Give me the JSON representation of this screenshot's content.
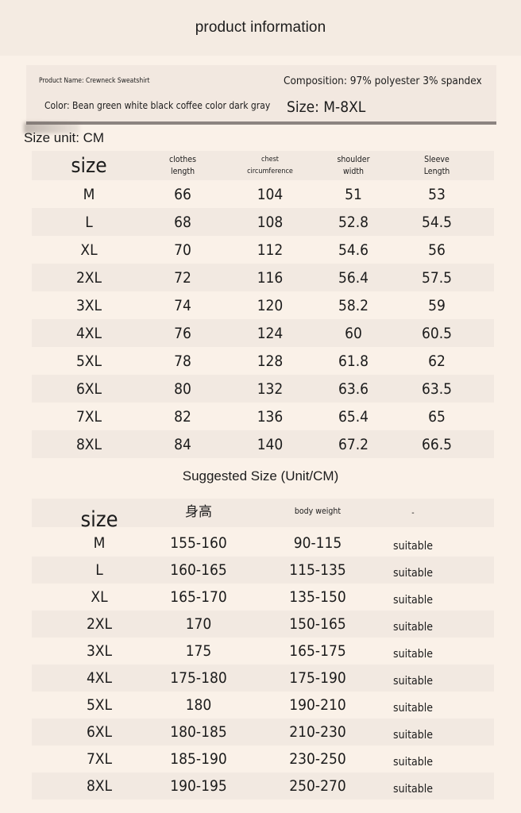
{
  "header": {
    "title": "product information"
  },
  "info": {
    "product_name": "Product Name: Crewneck Sweatshirt",
    "composition": "Composition: 97% polyester 3% spandex",
    "color": "Color: Bean green white black coffee color dark gray",
    "size_range": "Size: M-8XL"
  },
  "size_unit": "Size unit: CM",
  "measurements": {
    "headers": [
      "size",
      "clothes\nlength",
      "chest\ncircumference",
      "shoulder\nwidth",
      "Sleeve\nLength"
    ],
    "rows": [
      [
        "M",
        "66",
        "104",
        "51",
        "53"
      ],
      [
        "L",
        "68",
        "108",
        "52.8",
        "54.5"
      ],
      [
        "XL",
        "70",
        "112",
        "54.6",
        "56"
      ],
      [
        "2XL",
        "72",
        "116",
        "56.4",
        "57.5"
      ],
      [
        "3XL",
        "74",
        "120",
        "58.2",
        "59"
      ],
      [
        "4XL",
        "76",
        "124",
        "60",
        "60.5"
      ],
      [
        "5XL",
        "78",
        "128",
        "61.8",
        "62"
      ],
      [
        "6XL",
        "80",
        "132",
        "63.6",
        "63.5"
      ],
      [
        "7XL",
        "82",
        "136",
        "65.4",
        "65"
      ],
      [
        "8XL",
        "84",
        "140",
        "67.2",
        "66.5"
      ]
    ]
  },
  "suggested": {
    "title": "Suggested Size (Unit/CM)",
    "headers": [
      "size",
      "身高",
      "body weight",
      "-"
    ],
    "rows": [
      [
        "M",
        "155-160",
        "90-115",
        "suitable"
      ],
      [
        "L",
        "160-165",
        "115-135",
        "suitable"
      ],
      [
        "XL",
        "165-170",
        "135-150",
        "suitable"
      ],
      [
        "2XL",
        "170",
        "150-165",
        "suitable"
      ],
      [
        "3XL",
        "175",
        "165-175",
        "suitable"
      ],
      [
        "4XL",
        "175-180",
        "175-190",
        "suitable"
      ],
      [
        "5XL",
        "180",
        "190-210",
        "suitable"
      ],
      [
        "6XL",
        "180-185",
        "210-230",
        "suitable"
      ],
      [
        "7XL",
        "185-190",
        "230-250",
        "suitable"
      ],
      [
        "8XL",
        "190-195",
        "250-270",
        "suitable"
      ]
    ]
  }
}
